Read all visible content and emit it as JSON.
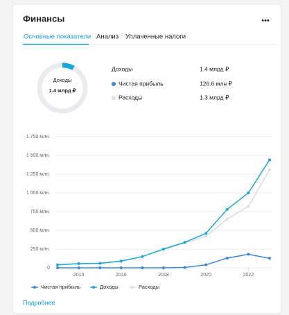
{
  "header": {
    "title": "Финансы",
    "menu": "•••"
  },
  "tabs": [
    "Основные показатели",
    "Анализ",
    "Уплаченные налоги"
  ],
  "donut": {
    "label": "Доходы",
    "value": "1.4 млрд ₽"
  },
  "summary": [
    {
      "label": "Доходы",
      "value": "1.4 млрд ₽"
    },
    {
      "label": "Чистая прибыль",
      "value": "126.6 млн ₽"
    },
    {
      "label": "Расходы",
      "value": "1.3 млрд ₽"
    }
  ],
  "footer": {
    "link": "Подробнее"
  },
  "chart_data": {
    "type": "line",
    "x": [
      2013,
      2014,
      2015,
      2016,
      2017,
      2018,
      2019,
      2020,
      2021,
      2022,
      2023
    ],
    "series": [
      {
        "name": "Чистая прибыль",
        "color": "#3a86d4",
        "values": [
          0,
          0,
          0,
          0,
          0,
          0,
          5,
          40,
          130,
          180,
          127
        ]
      },
      {
        "name": "Доходы",
        "color": "#1aa6d6",
        "values": [
          40,
          55,
          60,
          90,
          150,
          250,
          340,
          460,
          780,
          1000,
          1440
        ]
      },
      {
        "name": "Расходы",
        "color": "#d8dde3",
        "values": [
          40,
          55,
          60,
          85,
          150,
          250,
          330,
          420,
          650,
          820,
          1310
        ]
      }
    ],
    "xlim": [
      2012.9,
      2023.1
    ],
    "xticks": [
      2014,
      2016,
      2018,
      2020,
      2022
    ],
    "ylim": [
      0,
      1750
    ],
    "yticks": [
      0,
      {
        "value": 250,
        "label": "250 млн."
      },
      {
        "value": 500,
        "label": "500 млн."
      },
      {
        "value": 750,
        "label": "750 млн."
      },
      {
        "value": 1000,
        "label": "1 000 млн."
      },
      {
        "value": 1250,
        "label": "1 250 млн."
      },
      {
        "value": 1500,
        "label": "1 500 млн."
      },
      {
        "value": 1750,
        "label": "1 750 млн."
      }
    ],
    "grid": true,
    "legend": "bottom"
  }
}
